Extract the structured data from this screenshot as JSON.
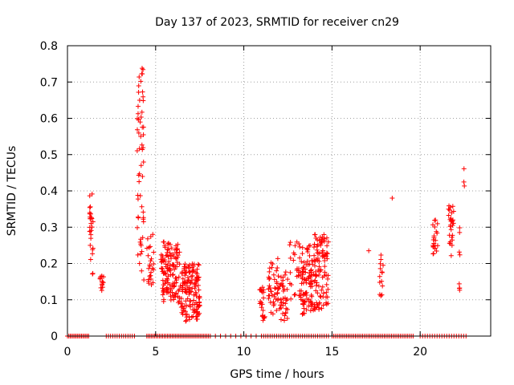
{
  "chart_data": {
    "type": "scatter",
    "title": "Day 137 of 2023, SRMTID for receiver cn29",
    "xlabel": "GPS time / hours",
    "ylabel": "SRMTID / TECUs",
    "xlim": [
      0,
      24
    ],
    "ylim": [
      0,
      0.8
    ],
    "x_ticks": [
      0,
      5,
      10,
      15,
      20
    ],
    "y_ticks": [
      0,
      0.1,
      0.2,
      0.3,
      0.4,
      0.5,
      0.6,
      0.7,
      0.8
    ],
    "x_tick_labels": [
      "0",
      "5",
      "10",
      "15",
      "20"
    ],
    "y_tick_labels": [
      "0",
      "0.1",
      "0.2",
      "0.3",
      "0.4",
      "0.5",
      "0.6",
      "0.7",
      "0.8"
    ],
    "grid": true,
    "series": [
      {
        "name": "SRMTID",
        "color": "#ff0000",
        "marker": "plus",
        "clusters": [
          {
            "x": [
              0.0,
              1.2
            ],
            "y": [
              0,
              0
            ],
            "n": 16
          },
          {
            "x": [
              1.25,
              1.45
            ],
            "y": [
              0.17,
              0.41
            ],
            "n": 28
          },
          {
            "x": [
              1.85,
              2.05
            ],
            "y": [
              0.08,
              0.2
            ],
            "n": 14
          },
          {
            "x": [
              2.2,
              3.8
            ],
            "y": [
              0,
              0
            ],
            "n": 14
          },
          {
            "x": [
              3.95,
              4.35
            ],
            "y": [
              0.13,
              0.74
            ],
            "n": 58
          },
          {
            "x": [
              4.5,
              4.9
            ],
            "y": [
              0.14,
              0.3
            ],
            "n": 26
          },
          {
            "x": [
              5.3,
              6.4
            ],
            "y": [
              0.09,
              0.26
            ],
            "n": 130
          },
          {
            "x": [
              6.4,
              7.5
            ],
            "y": [
              0.04,
              0.2
            ],
            "n": 140
          },
          {
            "x": [
              4.5,
              8.0
            ],
            "y": [
              0,
              0
            ],
            "n": 40
          },
          {
            "x": [
              8.1,
              10.7
            ],
            "y": [
              0,
              0
            ],
            "n": 10
          },
          {
            "x": [
              10.9,
              11.2
            ],
            "y": [
              0.04,
              0.14
            ],
            "n": 22
          },
          {
            "x": [
              11.4,
              12.0
            ],
            "y": [
              0.06,
              0.22
            ],
            "n": 45
          },
          {
            "x": [
              12.0,
              12.5
            ],
            "y": [
              0.04,
              0.18
            ],
            "n": 35
          },
          {
            "x": [
              12.6,
              13.3
            ],
            "y": [
              0.1,
              0.26
            ],
            "n": 35
          },
          {
            "x": [
              13.3,
              14.0
            ],
            "y": [
              0.06,
              0.25
            ],
            "n": 90
          },
          {
            "x": [
              14.0,
              14.8
            ],
            "y": [
              0.07,
              0.28
            ],
            "n": 95
          },
          {
            "x": [
              11.0,
              14.8
            ],
            "y": [
              0,
              0
            ],
            "n": 32
          },
          {
            "x": [
              15.0,
              19.6
            ],
            "y": [
              0,
              0
            ],
            "n": 46
          },
          {
            "x": [
              17.0,
              17.1
            ],
            "y": [
              0.235,
              0.235
            ],
            "n": 1
          },
          {
            "x": [
              17.7,
              17.9
            ],
            "y": [
              0.11,
              0.23
            ],
            "n": 14
          },
          {
            "x": [
              18.4,
              18.45
            ],
            "y": [
              0.38,
              0.38
            ],
            "n": 1
          },
          {
            "x": [
              20.7,
              21.0
            ],
            "y": [
              0.22,
              0.33
            ],
            "n": 22
          },
          {
            "x": [
              21.6,
              21.9
            ],
            "y": [
              0.2,
              0.39
            ],
            "n": 30
          },
          {
            "x": [
              22.2,
              22.3
            ],
            "y": [
              0.12,
              0.3
            ],
            "n": 8
          },
          {
            "x": [
              22.4,
              22.6
            ],
            "y": [
              0.41,
              0.49
            ],
            "n": 3
          },
          {
            "x": [
              20.0,
              22.6
            ],
            "y": [
              0,
              0
            ],
            "n": 20
          }
        ]
      }
    ]
  }
}
